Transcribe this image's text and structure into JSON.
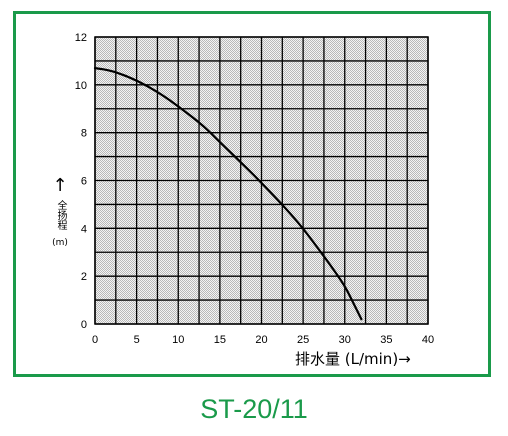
{
  "chart_data": {
    "type": "line",
    "title": "ST-20/11",
    "xlabel": "排水量 (L/min)→",
    "ylabel": "全扬程",
    "ylabel_unit": "(m)",
    "ylabel_arrow": "↑",
    "xlim": [
      0,
      40
    ],
    "ylim": [
      0,
      12
    ],
    "xticks": [
      0,
      5,
      10,
      15,
      20,
      25,
      30,
      35,
      40
    ],
    "yticks": [
      0,
      2,
      4,
      6,
      8,
      10,
      12
    ],
    "grid": true,
    "series": [
      {
        "points": [
          [
            0,
            10.7
          ],
          [
            2,
            10.6
          ],
          [
            5,
            10.2
          ],
          [
            8,
            9.6
          ],
          [
            10,
            9.1
          ],
          [
            13,
            8.3
          ],
          [
            15,
            7.6
          ],
          [
            18,
            6.6
          ],
          [
            20,
            5.9
          ],
          [
            23,
            4.8
          ],
          [
            25,
            4.0
          ],
          [
            28,
            2.6
          ],
          [
            30,
            1.6
          ],
          [
            31,
            0.9
          ],
          [
            32,
            0.2
          ]
        ]
      }
    ]
  },
  "colors": {
    "frame": "#1a9a4a",
    "caption": "#1a9a4a",
    "curve": "#000000",
    "plot_fill": "#e2e2e2"
  }
}
